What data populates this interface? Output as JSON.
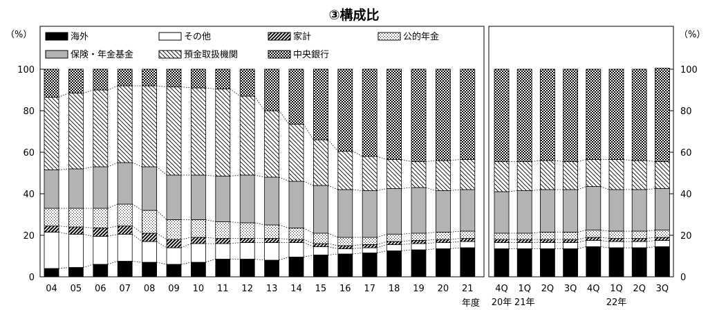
{
  "chart_data": {
    "type": "bar",
    "stacked": true,
    "percent": true,
    "title": "③構成比",
    "ylabel_left": "（%）",
    "ylabel_right": "（%）",
    "ylim": [
      0,
      100
    ],
    "yticks": [
      0,
      20,
      40,
      60,
      80,
      100
    ],
    "grid": false,
    "legend_position": "top",
    "annual": {
      "categories": [
        "04",
        "05",
        "06",
        "07",
        "08",
        "09",
        "10",
        "11",
        "12",
        "13",
        "14",
        "15",
        "16",
        "17",
        "18",
        "19",
        "20",
        "21"
      ],
      "x_caption": "年度"
    },
    "quarterly": {
      "categories": [
        "4Q",
        "1Q",
        "2Q",
        "3Q",
        "4Q",
        "1Q",
        "2Q",
        "3Q"
      ],
      "year_labels": [
        {
          "text": "20年",
          "index": 0
        },
        {
          "text": "21年",
          "index": 1
        },
        {
          "text": "22年",
          "index": 5
        }
      ]
    },
    "series": [
      {
        "name": "海外",
        "pattern": "solid-black",
        "annual": [
          4,
          4.5,
          6,
          7.5,
          7,
          6,
          7,
          8.5,
          8.5,
          8,
          9.5,
          10.5,
          11,
          11.5,
          12.5,
          13,
          13.5,
          14
        ],
        "quarterly": [
          13.5,
          13.5,
          13.5,
          13.5,
          14.5,
          14,
          14,
          14.5
        ]
      },
      {
        "name": "その他",
        "pattern": "white",
        "annual": [
          17.5,
          16,
          13.5,
          13,
          10,
          8,
          9,
          7.5,
          8,
          8.5,
          7,
          4,
          2.5,
          2.5,
          3,
          3,
          3,
          3
        ],
        "quarterly": [
          3,
          3,
          3,
          3,
          3,
          3,
          3,
          3
        ]
      },
      {
        "name": "家計",
        "pattern": "diag-thick",
        "annual": [
          3,
          3.5,
          4,
          4,
          4,
          4,
          3,
          2.5,
          2,
          2,
          1.5,
          1.5,
          1.5,
          1.5,
          1.5,
          1.5,
          1.5,
          1.5
        ],
        "quarterly": [
          1.5,
          1.5,
          1.5,
          1.5,
          1.5,
          1.5,
          1.5,
          1.5
        ]
      },
      {
        "name": "公的年金",
        "pattern": "dots",
        "annual": [
          8.5,
          9,
          9.5,
          10.5,
          11,
          9.5,
          8.5,
          8,
          7.5,
          6.5,
          5.5,
          5,
          4,
          3.5,
          3.5,
          3.5,
          3.5,
          3.5
        ],
        "quarterly": [
          3,
          3,
          3.5,
          3.5,
          3.5,
          3.5,
          3.5,
          3.5
        ]
      },
      {
        "name": "保険・年金基金",
        "pattern": "gray",
        "annual": [
          18.5,
          19,
          20,
          20,
          21,
          21.5,
          21.5,
          22,
          23,
          23,
          22.5,
          23,
          23,
          22.5,
          22,
          22,
          20,
          20
        ],
        "quarterly": [
          20,
          20.5,
          20.5,
          20.5,
          21,
          20,
          20,
          20
        ]
      },
      {
        "name": "預金取扱機関",
        "pattern": "diag-thin",
        "annual": [
          35,
          36.5,
          37,
          37,
          39,
          42.5,
          42,
          42,
          38,
          32,
          27.5,
          22,
          18.5,
          16.5,
          14,
          12.5,
          14.5,
          14.5
        ],
        "quarterly": [
          14.5,
          14,
          14,
          13.5,
          13,
          14.5,
          14,
          13
        ]
      },
      {
        "name": "中央銀行",
        "pattern": "checker",
        "annual": [
          13.5,
          11.5,
          10,
          8,
          8,
          8.5,
          9,
          9.5,
          13,
          20,
          26.5,
          34,
          39.5,
          42,
          43.5,
          44.5,
          44,
          43.5
        ],
        "quarterly": [
          44.5,
          44.5,
          44,
          44.5,
          43.5,
          43.5,
          44,
          45
        ]
      }
    ]
  }
}
